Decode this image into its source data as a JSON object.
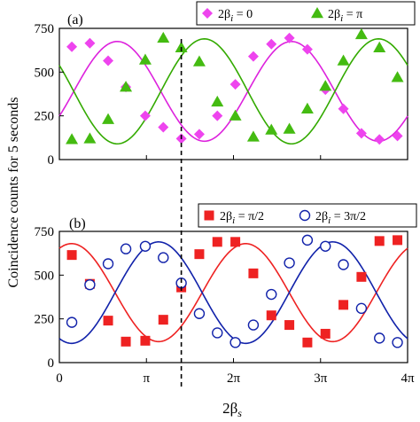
{
  "chart_data": [
    {
      "panel_label": "(a)",
      "type": "scatter",
      "ylim": [
        0,
        750
      ],
      "xlim": [
        0,
        12.566
      ],
      "yticks": [
        0,
        250,
        500,
        750
      ],
      "ytick_labels": [
        "0",
        "250",
        "500",
        "750"
      ],
      "xticks": [
        0,
        3.1416,
        6.2832,
        9.4248,
        12.566
      ],
      "grid": false,
      "legend_position": "top-right",
      "series": [
        {
          "name": "2β_i = 0",
          "legend_label": {
            "main": "2β",
            "sub": "i",
            "rest": "= 0"
          },
          "marker": "diamond",
          "color": "#ee44ee",
          "fit_color": "#dd22dd",
          "fit": {
            "mean": 390,
            "amplitude": 285,
            "frequency": 2,
            "phase": 0.95
          },
          "points": [
            {
              "x": 0.45,
              "y": 645
            },
            {
              "x": 1.1,
              "y": 665
            },
            {
              "x": 1.76,
              "y": 565
            },
            {
              "x": 2.4,
              "y": 415
            },
            {
              "x": 3.1,
              "y": 250
            },
            {
              "x": 3.75,
              "y": 185
            },
            {
              "x": 4.4,
              "y": 120
            },
            {
              "x": 5.05,
              "y": 145
            },
            {
              "x": 5.7,
              "y": 250
            },
            {
              "x": 6.35,
              "y": 430
            },
            {
              "x": 7.0,
              "y": 590
            },
            {
              "x": 7.65,
              "y": 660
            },
            {
              "x": 8.3,
              "y": 695
            },
            {
              "x": 8.95,
              "y": 630
            },
            {
              "x": 9.6,
              "y": 400
            },
            {
              "x": 10.25,
              "y": 290
            },
            {
              "x": 10.9,
              "y": 150
            },
            {
              "x": 11.55,
              "y": 115
            },
            {
              "x": 12.2,
              "y": 135
            }
          ]
        },
        {
          "name": "2β_i = π",
          "legend_label": {
            "main": "2β",
            "sub": "i",
            "rest": "= π"
          },
          "marker": "triangle",
          "color": "#44bb11",
          "fit_color": "#33aa00",
          "fit": {
            "mean": 390,
            "amplitude": -300,
            "frequency": 2,
            "phase": 0.95
          },
          "points": [
            {
              "x": 0.45,
              "y": 115
            },
            {
              "x": 1.1,
              "y": 120
            },
            {
              "x": 1.76,
              "y": 230
            },
            {
              "x": 2.4,
              "y": 415
            },
            {
              "x": 3.1,
              "y": 570
            },
            {
              "x": 3.75,
              "y": 695
            },
            {
              "x": 4.4,
              "y": 640
            },
            {
              "x": 5.05,
              "y": 560
            },
            {
              "x": 5.7,
              "y": 330
            },
            {
              "x": 6.35,
              "y": 250
            },
            {
              "x": 7.0,
              "y": 130
            },
            {
              "x": 7.65,
              "y": 170
            },
            {
              "x": 8.3,
              "y": 175
            },
            {
              "x": 8.95,
              "y": 290
            },
            {
              "x": 9.6,
              "y": 420
            },
            {
              "x": 10.25,
              "y": 565
            },
            {
              "x": 10.9,
              "y": 715
            },
            {
              "x": 11.55,
              "y": 640
            },
            {
              "x": 12.2,
              "y": 470
            }
          ]
        }
      ]
    },
    {
      "panel_label": "(b)",
      "type": "scatter",
      "ylim": [
        0,
        750
      ],
      "xlim": [
        0,
        12.566
      ],
      "yticks": [
        0,
        250,
        500,
        750
      ],
      "ytick_labels": [
        "0",
        "250",
        "500",
        "750"
      ],
      "xticks": [
        0,
        3.1416,
        6.2832,
        9.4248,
        12.566
      ],
      "xtick_labels": [
        "0",
        "π",
        "2π",
        "3π",
        "4π"
      ],
      "xlabel": {
        "main": "2β",
        "sub": "s"
      },
      "grid": false,
      "legend_position": "top",
      "series": [
        {
          "name": "2β_i = π/2",
          "legend_label": {
            "main": "2β",
            "sub": "i",
            "rest": "= π/2"
          },
          "marker": "square",
          "color": "#ee2222",
          "fit_color": "#ee2222",
          "fit": {
            "mean": 400,
            "amplitude": 280,
            "frequency": 2,
            "phase": 0.2
          },
          "points": [
            {
              "x": 0.45,
              "y": 615
            },
            {
              "x": 1.1,
              "y": 450
            },
            {
              "x": 1.76,
              "y": 240
            },
            {
              "x": 2.4,
              "y": 120
            },
            {
              "x": 3.1,
              "y": 125
            },
            {
              "x": 3.75,
              "y": 245
            },
            {
              "x": 4.4,
              "y": 430
            },
            {
              "x": 5.05,
              "y": 620
            },
            {
              "x": 5.7,
              "y": 690
            },
            {
              "x": 6.35,
              "y": 690
            },
            {
              "x": 7.0,
              "y": 510
            },
            {
              "x": 7.65,
              "y": 270
            },
            {
              "x": 8.3,
              "y": 215
            },
            {
              "x": 8.95,
              "y": 115
            },
            {
              "x": 9.6,
              "y": 165
            },
            {
              "x": 10.25,
              "y": 330
            },
            {
              "x": 10.9,
              "y": 490
            },
            {
              "x": 11.55,
              "y": 695
            },
            {
              "x": 12.2,
              "y": 700
            }
          ]
        },
        {
          "name": "2β_i = 3π/2",
          "legend_label": {
            "main": "2β",
            "sub": "i",
            "rest": "= 3π/2"
          },
          "marker": "circle-open",
          "color": "#1122aa",
          "fit_color": "#1122aa",
          "fit": {
            "mean": 400,
            "amplitude": -290,
            "frequency": 2,
            "phase": 0.2
          },
          "points": [
            {
              "x": 0.45,
              "y": 230
            },
            {
              "x": 1.1,
              "y": 445
            },
            {
              "x": 1.76,
              "y": 565
            },
            {
              "x": 2.4,
              "y": 650
            },
            {
              "x": 3.1,
              "y": 665
            },
            {
              "x": 3.75,
              "y": 600
            },
            {
              "x": 4.4,
              "y": 455
            },
            {
              "x": 5.05,
              "y": 280
            },
            {
              "x": 5.7,
              "y": 170
            },
            {
              "x": 6.35,
              "y": 115
            },
            {
              "x": 7.0,
              "y": 215
            },
            {
              "x": 7.65,
              "y": 390
            },
            {
              "x": 8.3,
              "y": 570
            },
            {
              "x": 8.95,
              "y": 700
            },
            {
              "x": 9.6,
              "y": 665
            },
            {
              "x": 10.25,
              "y": 560
            },
            {
              "x": 10.9,
              "y": 310
            },
            {
              "x": 11.55,
              "y": 140
            },
            {
              "x": 12.2,
              "y": 115
            }
          ]
        }
      ]
    }
  ],
  "shared": {
    "ylabel": "Coincidence counts for 5  seconds",
    "vline_x": 4.4,
    "vline_style": "dashed"
  }
}
